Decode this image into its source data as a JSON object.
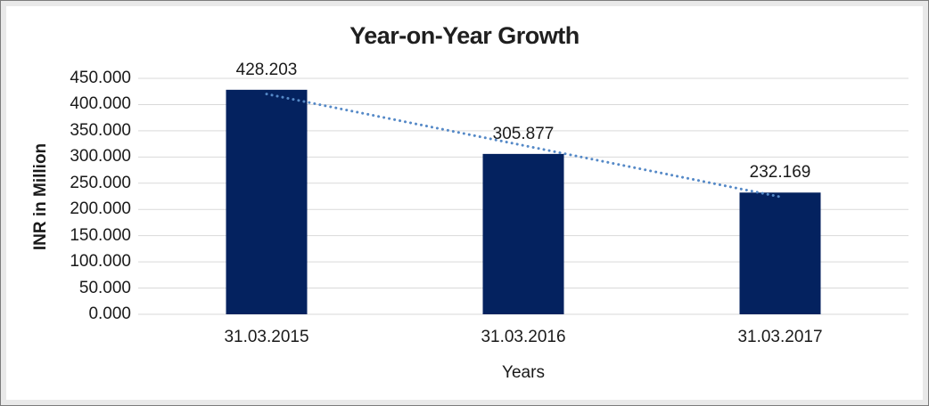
{
  "frame": {
    "background": "#ffffff",
    "border_outer": "#7c7c7c",
    "border_inner": "#e9e9e9"
  },
  "chart_data": {
    "type": "bar",
    "title": "Year-on-Year Growth",
    "xlabel": "Years",
    "ylabel": "INR in Million",
    "categories": [
      "31.03.2015",
      "31.03.2016",
      "31.03.2017"
    ],
    "values": [
      428.203,
      305.877,
      232.169
    ],
    "value_labels": [
      "428.203",
      "305.877",
      "232.169"
    ],
    "ylim": [
      0,
      450
    ],
    "ytick_step": 50,
    "ytick_labels": [
      "0.000",
      "50.000",
      "100.000",
      "150.000",
      "200.000",
      "250.000",
      "300.000",
      "350.000",
      "400.000",
      "450.000"
    ],
    "grid": true,
    "legend": "none",
    "bar_color": "#04225f",
    "gridline_color": "#d9d9d9",
    "axis_line_color": "#d9d9d9",
    "text_color": "#1a1a1a",
    "title_color": "#1f1f1f",
    "trendline": {
      "type": "linear",
      "style": "dotted",
      "color": "#5589c7"
    }
  }
}
